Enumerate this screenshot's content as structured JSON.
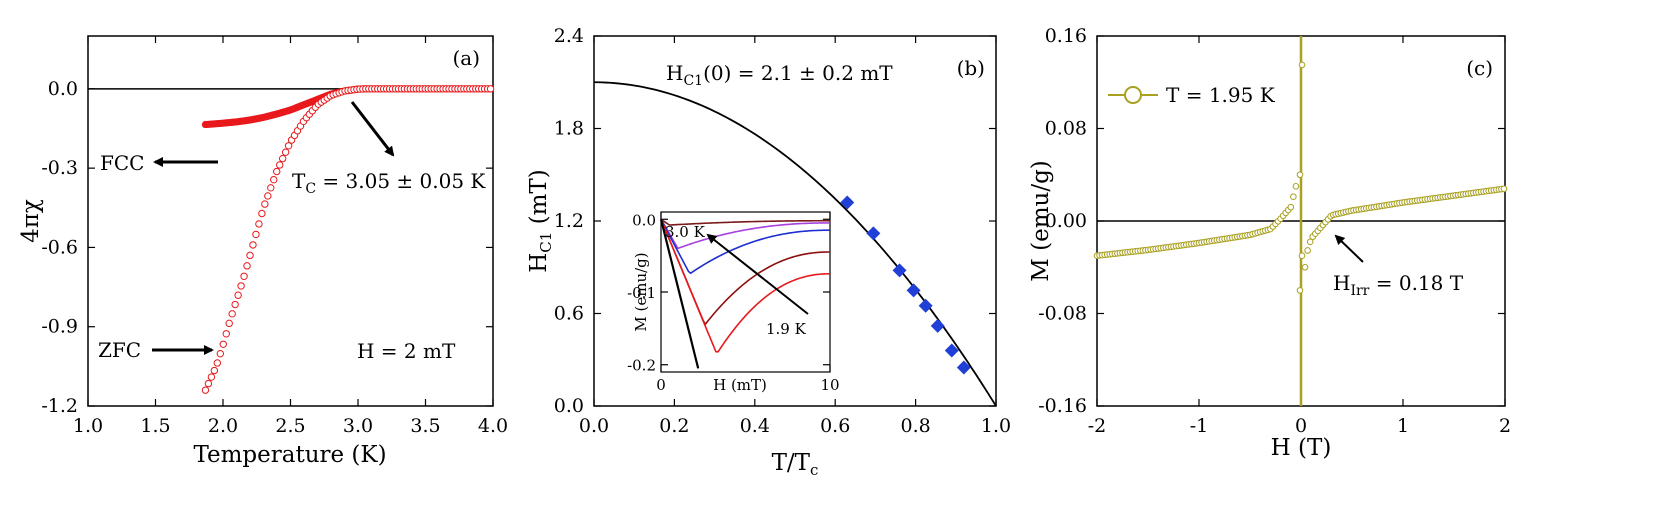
{
  "chart_data": [
    {
      "panel": "(a)",
      "type": "scatter",
      "xlabel": "Temperature (K)",
      "ylabel": "4πχ",
      "xlim": [
        1.0,
        4.0
      ],
      "ylim": [
        -1.2,
        0.2
      ],
      "xticks": [
        "1.0",
        "1.5",
        "2.0",
        "2.5",
        "3.0",
        "3.5",
        "4.0"
      ],
      "yticks": [
        "0.0",
        "-0.3",
        "-0.6",
        "-0.9",
        "-1.2"
      ],
      "series": [
        {
          "name": "ZFC",
          "x": [
            1.87,
            1.95,
            2.0,
            2.05,
            2.1,
            2.15,
            2.2,
            2.25,
            2.3,
            2.35,
            2.4,
            2.5,
            2.6,
            2.7,
            2.8,
            2.9,
            3.0,
            3.05,
            3.2,
            3.4,
            3.6,
            3.8,
            4.0
          ],
          "y": [
            -1.14,
            -1.05,
            -0.97,
            -0.88,
            -0.8,
            -0.72,
            -0.63,
            -0.54,
            -0.45,
            -0.38,
            -0.31,
            -0.2,
            -0.12,
            -0.06,
            -0.025,
            -0.008,
            -0.001,
            0.0,
            0.0,
            0.0,
            0.0,
            0.0,
            0.0
          ]
        },
        {
          "name": "FCC",
          "x": [
            1.87,
            2.0,
            2.1,
            2.2,
            2.3,
            2.4,
            2.5,
            2.6,
            2.7,
            2.8,
            2.9,
            3.0,
            3.05
          ],
          "y": [
            -0.135,
            -0.13,
            -0.125,
            -0.118,
            -0.108,
            -0.095,
            -0.08,
            -0.06,
            -0.04,
            -0.02,
            -0.008,
            -0.001,
            0.0
          ]
        }
      ],
      "labels": {
        "panel": "(a)",
        "tc": "T",
        "tc_sub": "C",
        "tc_rest": " = 3.05 ± 0.05 K",
        "fcc": "FCC",
        "zfc": "ZFC",
        "field": "H = 2 mT"
      },
      "colors": {
        "data": "#e8191c"
      }
    },
    {
      "panel": "(b)",
      "type": "scatter",
      "xlabel": "T/T",
      "xlabel_sub": "c",
      "ylabel": "H",
      "ylabel_sub": "C1",
      "ylabel_rest": " (mT)",
      "xlim": [
        0.0,
        1.0
      ],
      "ylim": [
        0.0,
        2.4
      ],
      "xticks": [
        "0.0",
        "0.2",
        "0.4",
        "0.6",
        "0.8",
        "1.0"
      ],
      "yticks": [
        "0.0",
        "0.6",
        "1.2",
        "1.8",
        "2.4"
      ],
      "points": {
        "x": [
          0.63,
          0.695,
          0.76,
          0.795,
          0.825,
          0.855,
          0.89,
          0.92
        ],
        "y": [
          1.32,
          1.12,
          0.88,
          0.75,
          0.65,
          0.52,
          0.36,
          0.25
        ]
      },
      "fit": {
        "hc0": 2.1
      },
      "labels": {
        "panel": "(b)",
        "fit_main": "H",
        "fit_sub": "C1",
        "fit_rest": "(0) = 2.1 ±  0.2 mT"
      },
      "colors": {
        "points": "#1f3fd6"
      },
      "inset": {
        "type": "line",
        "xlabel": "H (mT)",
        "ylabel": "M (emu/g)",
        "xlim": [
          0,
          10
        ],
        "ylim": [
          -0.21,
          0.01
        ],
        "xticks": [
          "0",
          "10"
        ],
        "yticks": [
          "0.0",
          "-0.1",
          "-0.2"
        ],
        "label_high": "3.0 K",
        "label_low": "1.9 K",
        "series": [
          {
            "color": "#7a1a1a",
            "min_h": 0.5,
            "min_m": -0.008,
            "end_m": -0.002
          },
          {
            "color": "#a640e0",
            "min_h": 1.0,
            "min_m": -0.04,
            "end_m": -0.005
          },
          {
            "color": "#1f2fd0",
            "min_h": 1.7,
            "min_m": -0.075,
            "end_m": -0.015
          },
          {
            "color": "#8b1010",
            "min_h": 2.6,
            "min_m": -0.145,
            "end_m": -0.045
          },
          {
            "color": "#e8191c",
            "min_h": 3.3,
            "min_m": -0.185,
            "end_m": -0.075
          }
        ]
      }
    },
    {
      "panel": "(c)",
      "type": "line",
      "xlabel": "H (T)",
      "ylabel": "M (emu/g)",
      "xlim": [
        -2,
        2
      ],
      "ylim": [
        -0.16,
        0.16
      ],
      "xticks": [
        "-2",
        "-1",
        "0",
        "1",
        "2"
      ],
      "yticks": [
        "0.16",
        "0.08",
        "0.00",
        "-0.08",
        "-0.16"
      ],
      "series": [
        {
          "name": "T = 1.95 K",
          "x": [
            -2.0,
            -1.5,
            -1.0,
            -0.5,
            -0.3,
            -0.2,
            -0.1,
            -0.05,
            -0.02,
            0.0,
            0.02,
            0.05,
            0.1,
            0.2,
            0.3,
            0.5,
            1.0,
            1.5,
            2.0
          ],
          "y": [
            -0.03,
            -0.025,
            -0.019,
            -0.012,
            -0.007,
            0.002,
            0.012,
            0.03,
            0.06,
            0.15,
            -0.06,
            -0.03,
            -0.015,
            -0.005,
            0.005,
            0.009,
            0.016,
            0.022,
            0.028
          ]
        }
      ],
      "labels": {
        "panel": "(c)",
        "legend": "T = 1.95 K",
        "hirr": "H",
        "hirr_sub": "Irr",
        "hirr_rest": " = 0.18 T"
      },
      "colors": {
        "data": "#a8a020"
      },
      "legend_position": "top-left"
    }
  ]
}
